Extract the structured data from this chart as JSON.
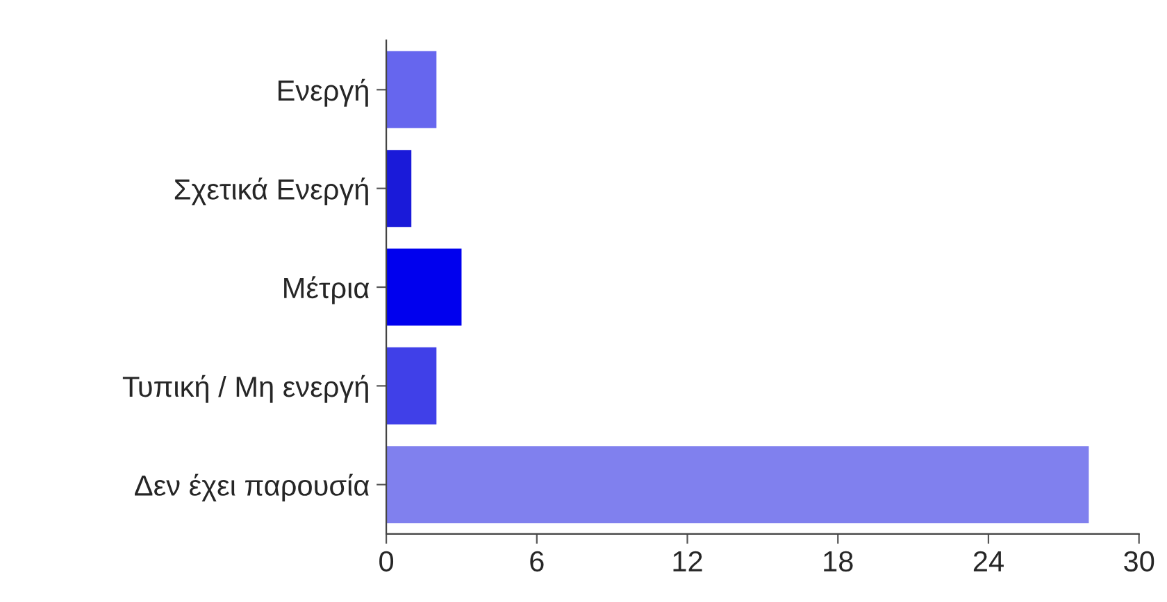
{
  "chart_data": {
    "type": "bar",
    "orientation": "horizontal",
    "categories": [
      "Ενεργή",
      "Σχετικά Ενεργή",
      "Μέτρια",
      "Τυπική / Μη ενεργή",
      "Δεν έχει παρουσία"
    ],
    "values": [
      2,
      1,
      3,
      2,
      28
    ],
    "colors": [
      "#6666ee",
      "#1a1ad9",
      "#0000ee",
      "#4040e8",
      "#8080ee"
    ],
    "xlim": [
      0,
      30
    ],
    "xticks": [
      0,
      6,
      12,
      18,
      24,
      30
    ],
    "grid": false,
    "legend": false
  }
}
